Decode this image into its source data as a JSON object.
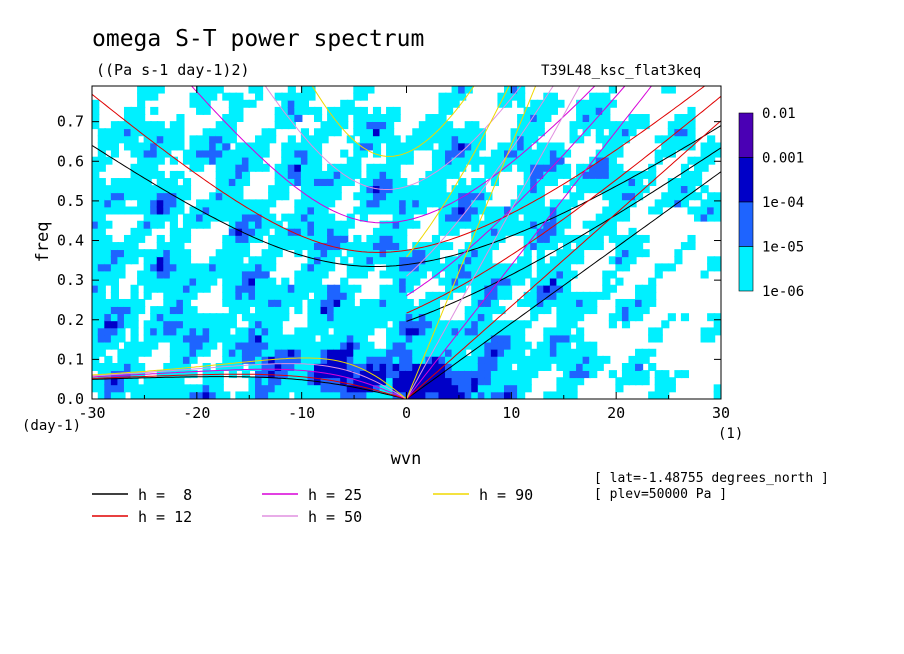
{
  "chart_data": {
    "type": "heatmap",
    "title": "omega S-T power spectrum",
    "subtitle": "((Pa s-1 day-1)2)",
    "run_label": "T39L48_ksc_flat3keq",
    "xlabel": "wvn",
    "x_unit": "(1)",
    "ylabel": "freq",
    "y_unit": "(day-1)",
    "xlim": [
      -30,
      30
    ],
    "ylim": [
      0,
      0.79
    ],
    "x_ticks": [
      -30,
      -20,
      -10,
      0,
      10,
      20,
      30
    ],
    "x_tick_labels": [
      "-30",
      "-20",
      "-10",
      "0",
      "10",
      "20",
      "30"
    ],
    "y_ticks": [
      0.0,
      0.1,
      0.2,
      0.3,
      0.4,
      0.5,
      0.6,
      0.7
    ],
    "y_tick_labels": [
      "0.0",
      "0.1",
      "0.2",
      "0.3",
      "0.4",
      "0.5",
      "0.6",
      "0.7"
    ],
    "colorbar": {
      "levels": [
        "0.01",
        "0.001",
        "1e-04",
        "1e-05",
        "1e-06"
      ],
      "colors": [
        "#4a00b4",
        "#0000c8",
        "#1e64ff",
        "#00f0ff"
      ]
    },
    "series": [
      {
        "name": "h =  8",
        "color": "#000000",
        "equivalent_depth_m": 8
      },
      {
        "name": "h = 12",
        "color": "#e00000",
        "equivalent_depth_m": 12
      },
      {
        "name": "h = 25",
        "color": "#d800d8",
        "equivalent_depth_m": 25
      },
      {
        "name": "h = 50",
        "color": "#e090e0",
        "equivalent_depth_m": 50
      },
      {
        "name": "h = 90",
        "color": "#f0d800",
        "equivalent_depth_m": 90
      }
    ],
    "annotations": [
      "[ lat=-1.48755 degrees_north ]",
      "[ plev=50000 Pa ]"
    ]
  }
}
